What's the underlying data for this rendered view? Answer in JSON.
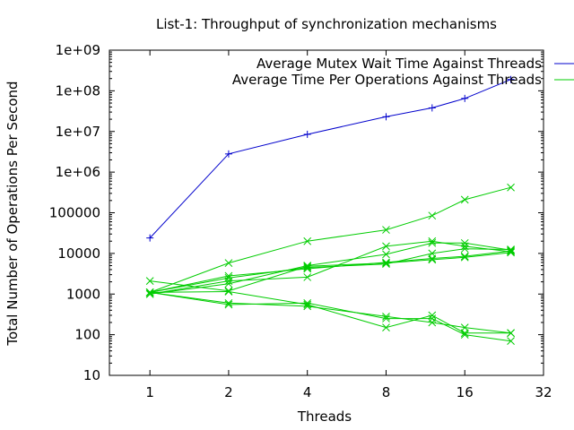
{
  "chart_data": {
    "type": "line",
    "title": "List-1: Throughput of synchronization mechanisms",
    "xlabel": "Threads",
    "ylabel": "Total Number of Operations Per Second",
    "xscale": "log2",
    "yscale": "log10",
    "xlim": [
      0.7,
      32
    ],
    "ylim": [
      10,
      1000000000
    ],
    "xticks": [
      1,
      2,
      4,
      8,
      16,
      32
    ],
    "xtick_labels": [
      "1",
      "2",
      "4",
      "8",
      "16",
      "32"
    ],
    "yticks": [
      10,
      100,
      1000,
      10000,
      100000,
      1000000,
      10000000,
      100000000,
      1000000000
    ],
    "ytick_labels": [
      "10",
      "100",
      "1000",
      "10000",
      "100000",
      "1e+06",
      "1e+07",
      "1e+08",
      "1e+09"
    ],
    "grid": false,
    "legend_position": "top-right",
    "series": [
      {
        "name": "Average Mutex Wait Time Against Threads",
        "color": "#0000cc",
        "marker": "plus",
        "x": [
          1,
          2,
          4,
          8,
          12,
          16,
          24
        ],
        "y": [
          24000,
          2800000,
          8500000,
          23000000,
          38000000,
          65000000,
          190000000
        ]
      },
      {
        "name": "Average Time Per Operations Against Threads",
        "color": "#00cc00",
        "marker": "cross",
        "x": [
          1,
          2,
          4,
          8,
          12,
          16,
          24
        ],
        "y": [
          1100,
          5800,
          20000,
          38000,
          85000,
          210000,
          420000
        ]
      },
      {
        "color": "#00cc00",
        "marker": "cross",
        "x": [
          1,
          2,
          4,
          8,
          12,
          16,
          24
        ],
        "y": [
          1000,
          2100,
          2600,
          15000,
          20000,
          15000,
          11000
        ]
      },
      {
        "color": "#00cc00",
        "marker": "cross",
        "x": [
          1,
          2,
          4,
          8,
          12,
          16,
          24
        ],
        "y": [
          1000,
          1800,
          5000,
          9500,
          18000,
          18000,
          12000
        ]
      },
      {
        "color": "#00cc00",
        "marker": "cross",
        "x": [
          1,
          2,
          4,
          8,
          12,
          16,
          24
        ],
        "y": [
          1100,
          2500,
          4500,
          5500,
          10000,
          13000,
          12500
        ]
      },
      {
        "color": "#00cc00",
        "marker": "cross",
        "x": [
          1,
          2,
          4,
          8,
          12,
          16,
          24
        ],
        "y": [
          1100,
          2800,
          4200,
          6000,
          7500,
          8500,
          11500
        ]
      },
      {
        "color": "#00cc00",
        "marker": "cross",
        "x": [
          1,
          2,
          4,
          8,
          12,
          16,
          24
        ],
        "y": [
          2100,
          1200,
          4800,
          5800,
          7000,
          8000,
          10500
        ]
      },
      {
        "color": "#00cc00",
        "marker": "cross",
        "x": [
          1,
          2,
          4,
          8,
          12,
          16,
          24
        ],
        "y": [
          1100,
          1150,
          550,
          150,
          300,
          110,
          110
        ]
      },
      {
        "color": "#00cc00",
        "marker": "cross",
        "x": [
          1,
          2,
          4,
          8,
          12,
          16,
          24
        ],
        "y": [
          1100,
          600,
          500,
          280,
          200,
          150,
          110
        ]
      },
      {
        "color": "#00cc00",
        "marker": "cross",
        "x": [
          1,
          2,
          4,
          8,
          12,
          16,
          24
        ],
        "y": [
          1100,
          550,
          600,
          250,
          250,
          100,
          70
        ]
      }
    ]
  }
}
